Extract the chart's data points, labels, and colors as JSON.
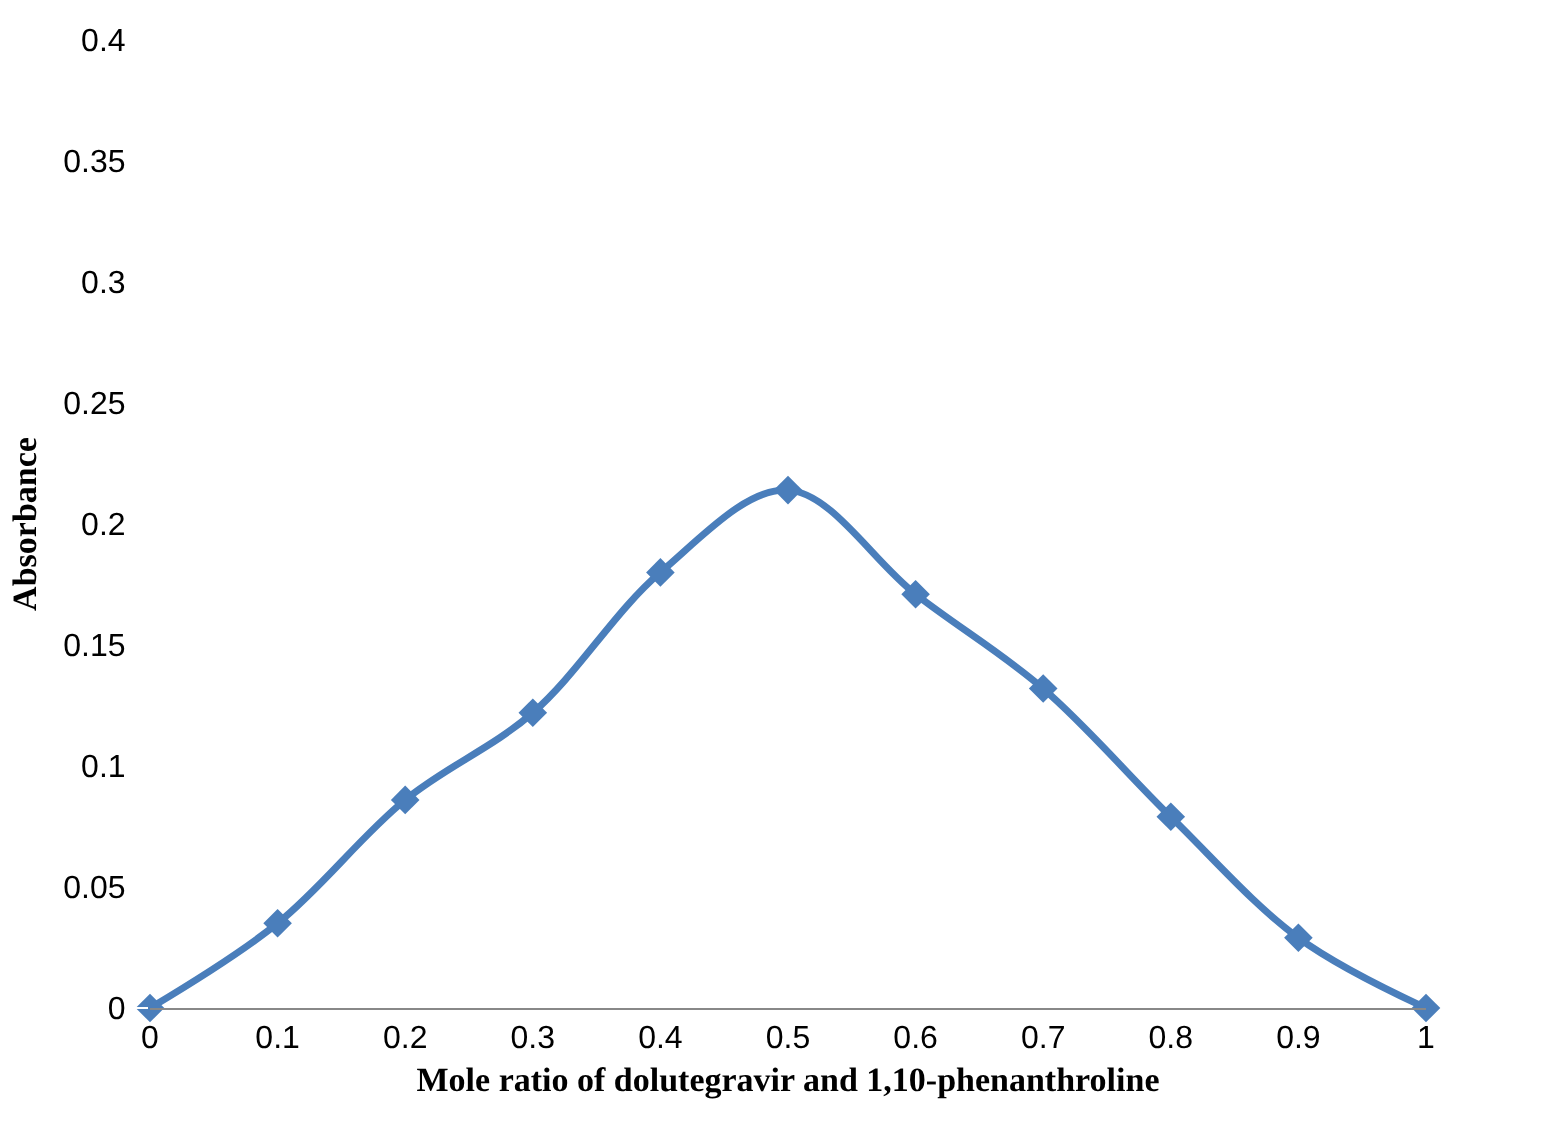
{
  "chart_data": {
    "type": "line",
    "xlabel": "Mole ratio of dolutegravir and 1,10-phenanthroline",
    "ylabel": "Absorbance",
    "x": [
      0,
      0.1,
      0.2,
      0.3,
      0.4,
      0.5,
      0.6,
      0.7,
      0.8,
      0.9,
      1
    ],
    "series": [
      {
        "color": "#4a7ebb",
        "values": [
          0,
          0.035,
          0.086,
          0.122,
          0.18,
          0.214,
          0.171,
          0.132,
          0.079,
          0.029,
          0
        ]
      }
    ],
    "xlim": [
      0,
      1
    ],
    "xticks": [
      0,
      0.1,
      0.2,
      0.3,
      0.4,
      0.5,
      0.6,
      0.7,
      0.8,
      0.9,
      1
    ],
    "ylim": [
      0,
      0.4
    ],
    "yticks": [
      0,
      0.05,
      0.1,
      0.15,
      0.2,
      0.25,
      0.3,
      0.35,
      0.4
    ],
    "marker": "diamond",
    "line_style": "solid",
    "legend": false
  }
}
